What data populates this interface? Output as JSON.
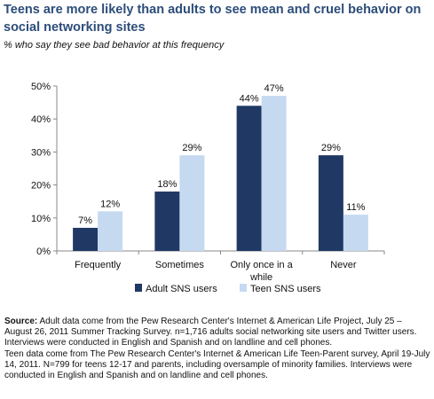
{
  "chart_data": {
    "type": "bar",
    "title": "Teens are more likely than adults to see mean and cruel behavior on social networking sites",
    "subtitle": "% who say they see bad behavior at this frequency",
    "categories": [
      "Frequently",
      "Sometimes",
      "Only once in a while",
      "Never"
    ],
    "category_lines": [
      [
        "Frequently"
      ],
      [
        "Sometimes"
      ],
      [
        "Only once in a",
        "while"
      ],
      [
        "Never"
      ]
    ],
    "series": [
      {
        "name": "Adult SNS users",
        "values": [
          7,
          18,
          44,
          29
        ],
        "labels": [
          "7%",
          "18%",
          "44%",
          "29%"
        ],
        "color": "#1f3864"
      },
      {
        "name": "Teen SNS users",
        "values": [
          12,
          29,
          47,
          11
        ],
        "labels": [
          "12%",
          "29%",
          "47%",
          "11%"
        ],
        "color": "#c5d9f1"
      }
    ],
    "ylim": [
      0,
      50
    ],
    "yticks": [
      0,
      10,
      20,
      30,
      40,
      50
    ],
    "ytick_labels": [
      "0%",
      "10%",
      "20%",
      "30%",
      "40%",
      "50%"
    ],
    "xlabel": "",
    "ylabel": "",
    "grid": false,
    "legend": "bottom"
  },
  "source": {
    "label": "Source:",
    "line1": " Adult data come from the Pew Research Center's Internet & American Life Project, July 25 – August 26, 2011 Summer Tracking Survey. n=1,716 adults social networking site users and Twitter users. Interviews were conducted in English and Spanish and on landline and cell phones.",
    "line2": "Teen data come from The Pew Research Center's Internet & American Life Teen-Parent survey, April 19-July 14, 2011. N=799 for teens 12-17 and parents, including oversample of minority families. Interviews were conducted in English and Spanish and on landline and cell phones."
  }
}
